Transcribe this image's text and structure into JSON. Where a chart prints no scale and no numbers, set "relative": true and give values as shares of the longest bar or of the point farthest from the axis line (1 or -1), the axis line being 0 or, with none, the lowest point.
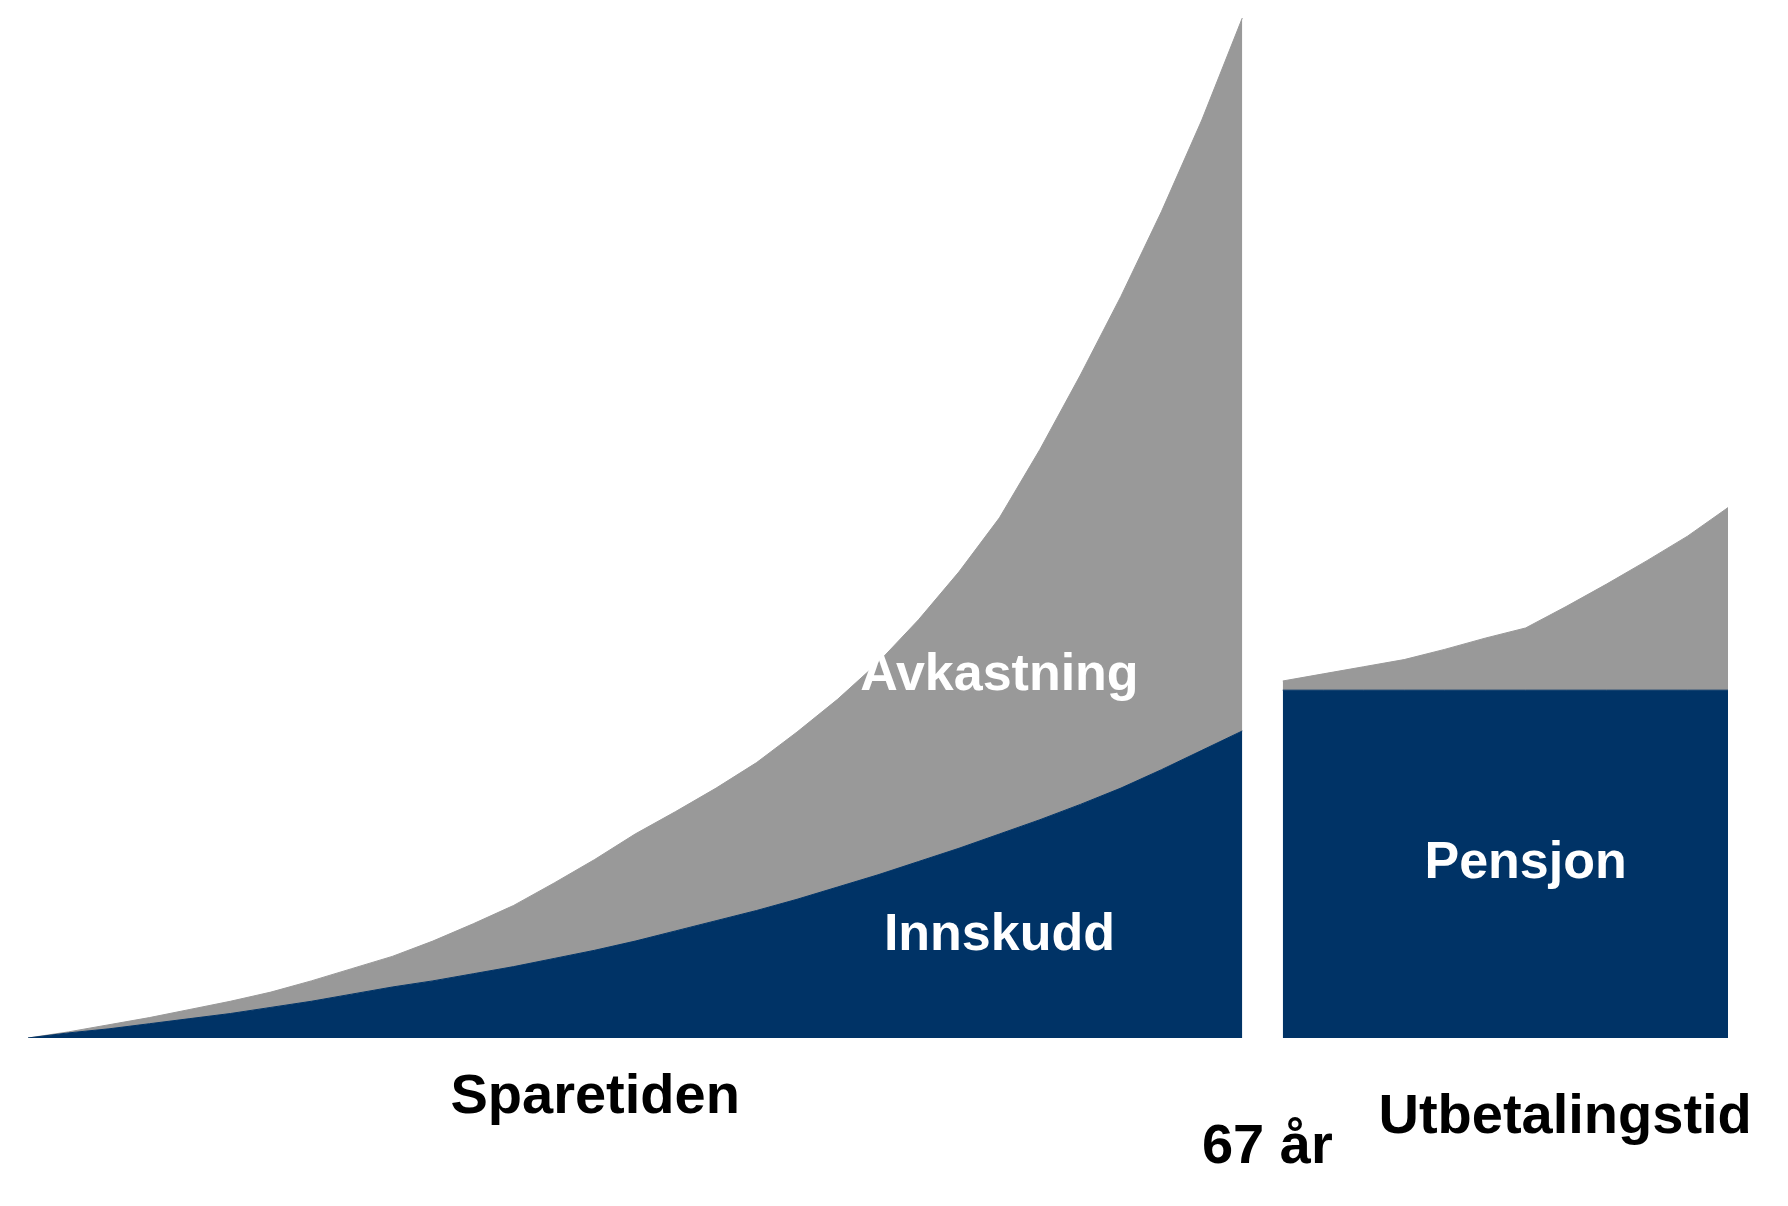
{
  "chart_data": {
    "type": "area",
    "relative": true,
    "stacked": true,
    "legend": false,
    "categories": [
      null,
      null,
      null,
      null,
      null,
      null,
      null,
      null,
      null,
      null,
      null,
      null,
      null,
      null,
      null,
      null,
      null,
      null,
      null,
      null,
      null,
      null,
      null,
      null,
      null,
      null,
      null,
      null,
      null,
      null,
      null,
      null,
      null,
      null,
      null,
      null,
      null,
      null,
      null,
      null,
      null,
      null,
      null
    ],
    "series": [
      {
        "name": "Innskudd",
        "color": "#003366",
        "values": [
          0,
          0.005,
          0.009,
          0.014,
          0.019,
          0.024,
          0.03,
          0.036,
          0.043,
          0.05,
          0.056,
          0.063,
          0.07,
          0.078,
          0.086,
          0.095,
          0.105,
          0.115,
          0.125,
          0.136,
          0.148,
          0.16,
          0.173,
          0.186,
          0.2,
          0.214,
          0.229,
          0.245,
          0.263,
          0.282,
          0.301,
          null,
          null,
          null,
          null,
          null,
          null,
          null,
          null,
          null,
          null,
          null,
          null
        ]
      },
      {
        "name": "Avkastning",
        "color": "#999999",
        "values": [
          0,
          0.001,
          0.004,
          0.006,
          0.009,
          0.012,
          0.015,
          0.02,
          0.025,
          0.03,
          0.039,
          0.049,
          0.06,
          0.074,
          0.089,
          0.105,
          0.117,
          0.13,
          0.145,
          0.164,
          0.184,
          0.208,
          0.237,
          0.271,
          0.31,
          0.363,
          0.421,
          0.482,
          0.547,
          0.618,
          0.699,
          null,
          null,
          null,
          null,
          null,
          null,
          null,
          null,
          null,
          null,
          null,
          null
        ]
      },
      {
        "name": "Pensjon",
        "color": "#003366",
        "values": [
          null,
          null,
          null,
          null,
          null,
          null,
          null,
          null,
          null,
          null,
          null,
          null,
          null,
          null,
          null,
          null,
          null,
          null,
          null,
          null,
          null,
          null,
          null,
          null,
          null,
          null,
          null,
          null,
          null,
          null,
          null,
          0.341,
          0.341,
          0.341,
          0.341,
          0.341,
          0.341,
          0.341,
          0.341,
          0.341,
          0.341,
          0.341,
          0.341
        ]
      },
      {
        "color": "#999999",
        "values": [
          null,
          null,
          null,
          null,
          null,
          null,
          null,
          null,
          null,
          null,
          null,
          null,
          null,
          null,
          null,
          null,
          null,
          null,
          null,
          null,
          null,
          null,
          null,
          null,
          null,
          null,
          null,
          null,
          null,
          null,
          null,
          0.009,
          0.016,
          0.023,
          0.03,
          0.04,
          0.051,
          0.061,
          0.082,
          0.104,
          0.127,
          0.151,
          0.179
        ]
      }
    ],
    "annotations": [
      "Sparetiden",
      "67 år",
      "Utbetalingstid"
    ]
  }
}
